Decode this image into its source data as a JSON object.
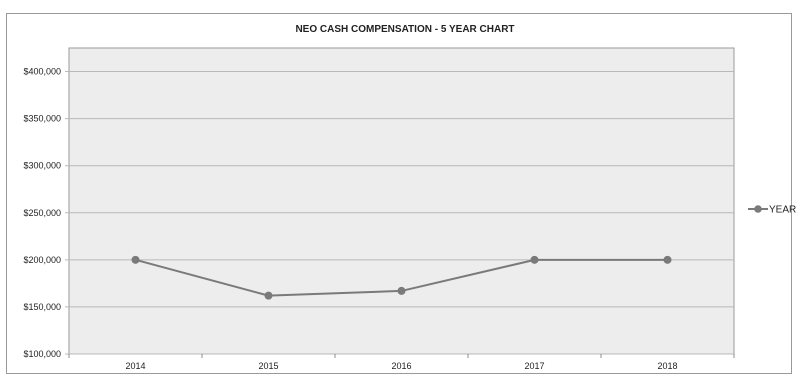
{
  "chart_data": {
    "type": "line",
    "title": "NEO CASH COMPENSATION - 5 YEAR CHART",
    "xlabel": "",
    "ylabel": "",
    "categories": [
      "2014",
      "2015",
      "2016",
      "2017",
      "2018"
    ],
    "series": [
      {
        "name": "YEAR",
        "values": [
          200000,
          162000,
          167000,
          200000,
          200000
        ]
      }
    ],
    "ylim": [
      100000,
      425000
    ],
    "yticks": [
      100000,
      150000,
      200000,
      250000,
      300000,
      350000,
      400000
    ],
    "ytick_labels": [
      "$100,000",
      "$150,000",
      "$200,000",
      "$250,000",
      "$300,000",
      "$350,000",
      "$400,000"
    ],
    "grid": true,
    "legend_position": "right",
    "colors": {
      "series": "#7a7a7a",
      "plot_background": "#ededed",
      "gridline": "#b8b8b8",
      "axis": "#8c8c8c",
      "border": "#9a9a9a"
    }
  }
}
